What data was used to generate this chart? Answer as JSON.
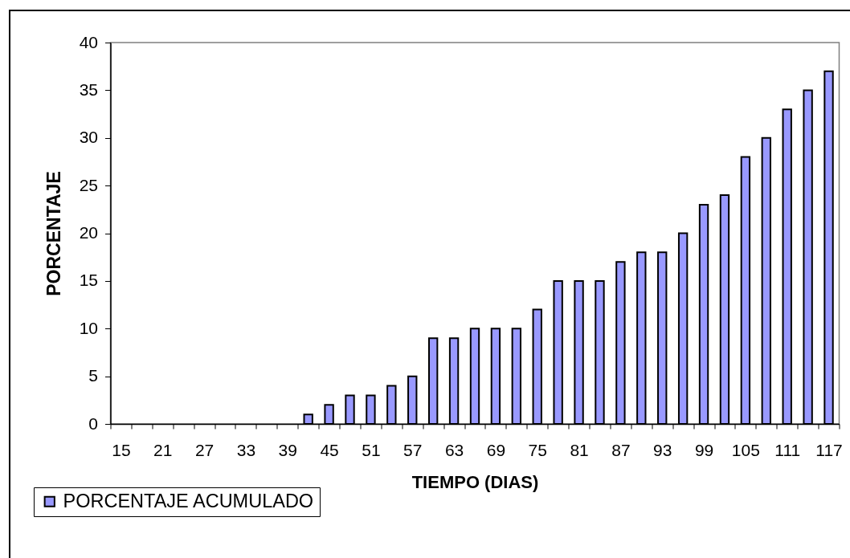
{
  "chart_data": {
    "type": "bar",
    "xlabel": "TIEMPO (DIAS)",
    "ylabel": "PORCENTAJE",
    "categories": [
      "15",
      null,
      "21",
      null,
      "27",
      null,
      "33",
      null,
      "39",
      null,
      "45",
      null,
      "51",
      null,
      "57",
      null,
      "63",
      null,
      "69",
      null,
      "75",
      null,
      "81",
      null,
      "87",
      null,
      "93",
      null,
      "99",
      null,
      "105",
      null,
      "111",
      null,
      "117"
    ],
    "series": [
      {
        "name": "PORCENTAJE ACUMULADO",
        "color": "#9999ff",
        "values": [
          null,
          null,
          null,
          null,
          null,
          null,
          null,
          null,
          null,
          1,
          2,
          3,
          3,
          4,
          5,
          9,
          9,
          10,
          10,
          10,
          12,
          15,
          15,
          15,
          17,
          18,
          18,
          20,
          23,
          24,
          28,
          30,
          33,
          35,
          37
        ]
      }
    ],
    "ylim": [
      0,
      40
    ],
    "yticks": [
      0,
      5,
      10,
      15,
      20,
      25,
      30,
      35,
      40
    ],
    "legend": "bottom left"
  }
}
